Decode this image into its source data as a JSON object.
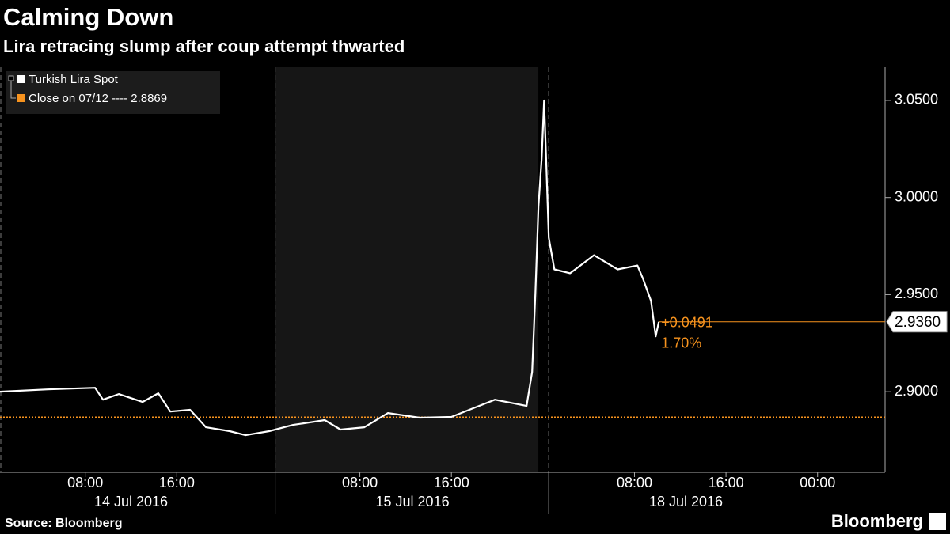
{
  "chart_data": {
    "type": "line",
    "title": "Calming Down",
    "subtitle": "Lira retracing slump after coup attempt thwarted",
    "source": "Source: Bloomberg",
    "brand": "Bloomberg",
    "series": [
      {
        "name": "Turkish Lira Spot",
        "color": "#ffffff",
        "x": [
          0.55,
          4.71,
          8.86,
          9.55,
          10.93,
          13.01,
          14.39,
          15.43,
          17.16,
          18.55,
          20.62,
          22.01,
          24.08,
          26.16,
          28.93,
          30.31,
          32.39,
          34.46,
          37.23,
          40.0,
          42.08,
          43.81,
          46.57,
          47.06,
          47.34,
          47.61,
          47.89,
          48.1,
          48.3,
          48.51,
          49.0,
          50.38,
          52.46,
          54.53,
          56.26,
          56.75,
          57.45,
          57.86,
          58.13
        ],
        "values": [
          2.9,
          2.9012,
          2.902,
          2.8959,
          2.8988,
          2.8947,
          2.8992,
          2.8898,
          2.8907,
          2.8817,
          2.8797,
          2.8776,
          2.8797,
          2.8829,
          2.8854,
          2.8805,
          2.8817,
          2.889,
          2.8866,
          2.887,
          2.8919,
          2.8959,
          2.8927,
          2.9102,
          2.9508,
          2.9955,
          3.0199,
          3.05,
          3.0159,
          2.9793,
          2.963,
          2.961,
          2.9703,
          2.963,
          2.965,
          2.9581,
          2.9467,
          2.9285,
          2.936
        ]
      }
    ],
    "last_value_label": "2.9360",
    "last_value_color": "#f7931e",
    "reference_line": {
      "name": "Close on 07/12 ---- 2.8869",
      "value": 2.8869,
      "color": "#f7931e"
    },
    "annotations": [
      "+0.0491",
      "1.70%"
    ],
    "xlim": [
      0.55,
      77.9
    ],
    "xticks": [
      {
        "value": 8,
        "label": "08:00"
      },
      {
        "value": 16,
        "label": "16:00"
      },
      {
        "value": 32,
        "label": "08:00"
      },
      {
        "value": 40,
        "label": "16:00"
      },
      {
        "value": 56,
        "label": "08:00"
      },
      {
        "value": 64,
        "label": "16:00"
      },
      {
        "value": 72,
        "label": "00:00"
      }
    ],
    "date_labels": [
      "14 Jul 2016",
      "15 Jul 2016",
      "18 Jul 2016"
    ],
    "day_dividers": [
      24.6,
      48.5
    ],
    "shaded_range": [
      24.6,
      47.6
    ],
    "ylim": [
      2.8585,
      3.0671
    ],
    "yticks": [
      {
        "value": 2.9,
        "label": "2.9000"
      },
      {
        "value": 2.95,
        "label": "2.9500"
      },
      {
        "value": 3.0,
        "label": "3.0000"
      },
      {
        "value": 3.05,
        "label": "3.0500"
      }
    ]
  }
}
